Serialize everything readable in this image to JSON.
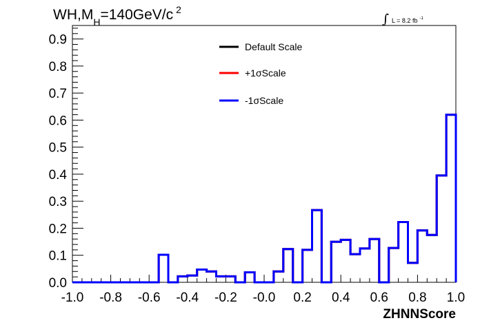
{
  "chart_data": {
    "type": "line",
    "title": "WH,M",
    "title_sub": "H",
    "title_rest": "=140GeV/c",
    "title_sup": "2",
    "lumi_label": "L = 8.2 fb",
    "lumi_sup": "-1",
    "xlabel": "ZHNNScore",
    "ylabel": "",
    "xlim": [
      -1.0,
      1.0
    ],
    "ylim": [
      0.0,
      0.95
    ],
    "x_tick_labels": [
      "-1.0",
      "-0.8",
      "-0.6",
      "-0.4",
      "-0.2",
      "-0.0",
      "0.2",
      "0.4",
      "0.6",
      "0.8",
      "1.0"
    ],
    "y_tick_labels": [
      "0.0",
      "0.1",
      "0.2",
      "0.3",
      "0.4",
      "0.5",
      "0.6",
      "0.7",
      "0.8",
      "0.9"
    ],
    "bin_edges": [
      -1.0,
      -0.95,
      -0.9,
      -0.85,
      -0.8,
      -0.75,
      -0.7,
      -0.65,
      -0.6,
      -0.55,
      -0.5,
      -0.45,
      -0.4,
      -0.35,
      -0.3,
      -0.25,
      -0.2,
      -0.15,
      -0.1,
      -0.05,
      0.0,
      0.05,
      0.1,
      0.15,
      0.2,
      0.25,
      0.3,
      0.35,
      0.4,
      0.45,
      0.5,
      0.55,
      0.6,
      0.65,
      0.7,
      0.75,
      0.8,
      0.85,
      0.9,
      0.95,
      1.0
    ],
    "series": [
      {
        "name": "Default Scale",
        "color": "#000000",
        "values": [
          0,
          0,
          0,
          0,
          0,
          0,
          0,
          0,
          0,
          0.102,
          0,
          0.022,
          0.025,
          0.047,
          0.04,
          0.022,
          0.022,
          0,
          0.037,
          0,
          0,
          0.04,
          0.123,
          0,
          0.12,
          0.267,
          0,
          0.15,
          0.157,
          0.104,
          0.125,
          0.16,
          0,
          0.127,
          0.223,
          0.072,
          0.192,
          0.175,
          0.395,
          0.62
        ]
      },
      {
        "name": "+1σScale",
        "color": "#ff0000",
        "values": [
          0,
          0,
          0,
          0,
          0,
          0,
          0,
          0,
          0,
          0.102,
          0,
          0.022,
          0.025,
          0.047,
          0.04,
          0.022,
          0.022,
          0,
          0.037,
          0,
          0,
          0.04,
          0.123,
          0,
          0.12,
          0.267,
          0,
          0.15,
          0.157,
          0.104,
          0.125,
          0.16,
          0,
          0.127,
          0.223,
          0.072,
          0.192,
          0.175,
          0.395,
          0.62
        ]
      },
      {
        "name": "-1σScale",
        "color": "#0000ff",
        "values": [
          0,
          0,
          0,
          0,
          0,
          0,
          0,
          0,
          0,
          0.102,
          0,
          0.022,
          0.025,
          0.047,
          0.04,
          0.022,
          0.022,
          0,
          0.037,
          0,
          0,
          0.04,
          0.123,
          0,
          0.12,
          0.267,
          0,
          0.15,
          0.157,
          0.104,
          0.125,
          0.16,
          0,
          0.127,
          0.223,
          0.072,
          0.192,
          0.175,
          0.395,
          0.62
        ]
      }
    ],
    "legend_position": "top-center",
    "grid": false
  }
}
